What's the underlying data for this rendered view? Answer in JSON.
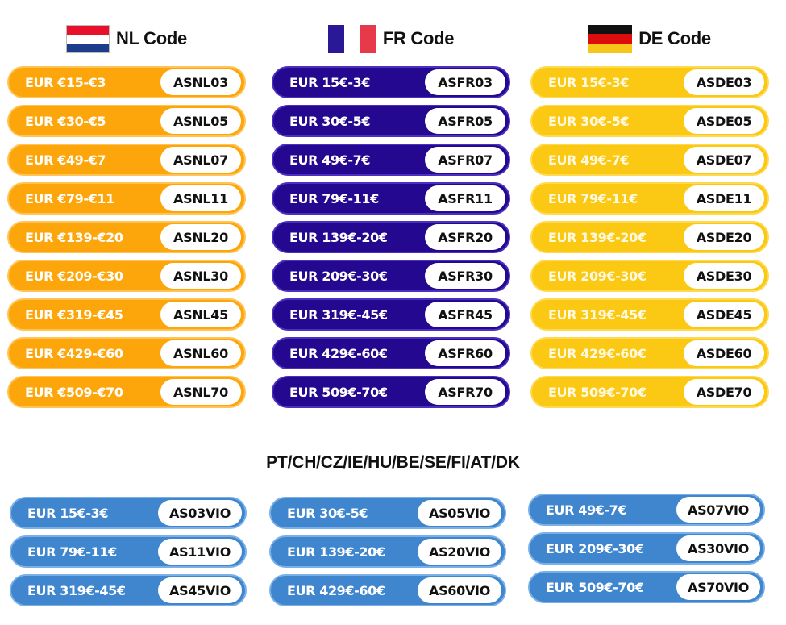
{
  "colors": {
    "nl_pill": "#fda60c",
    "fr_pill": "#24088f",
    "de_pill": "#fbc813",
    "other_pill": "#3f86ce",
    "code_bg": "#ffffff",
    "code_text": "#111111",
    "label_text": "#ffffff"
  },
  "nl": {
    "title": "NL Code",
    "flag_icon": "netherlands-flag-icon",
    "items": [
      {
        "label": "EUR €15-€3",
        "code": "ASNL03"
      },
      {
        "label": "EUR €30-€5",
        "code": "ASNL05"
      },
      {
        "label": "EUR €49-€7",
        "code": "ASNL07"
      },
      {
        "label": "EUR €79-€11",
        "code": "ASNL11"
      },
      {
        "label": "EUR €139-€20",
        "code": "ASNL20"
      },
      {
        "label": "EUR €209-€30",
        "code": "ASNL30"
      },
      {
        "label": "EUR €319-€45",
        "code": "ASNL45"
      },
      {
        "label": "EUR €429-€60",
        "code": "ASNL60"
      },
      {
        "label": "EUR €509-€70",
        "code": "ASNL70"
      }
    ]
  },
  "fr": {
    "title": "FR Code",
    "flag_icon": "france-flag-icon",
    "items": [
      {
        "label": "EUR 15€-3€",
        "code": "ASFR03"
      },
      {
        "label": "EUR 30€-5€",
        "code": "ASFR05"
      },
      {
        "label": "EUR 49€-7€",
        "code": "ASFR07"
      },
      {
        "label": "EUR 79€-11€",
        "code": "ASFR11"
      },
      {
        "label": "EUR 139€-20€",
        "code": "ASFR20"
      },
      {
        "label": "EUR 209€-30€",
        "code": "ASFR30"
      },
      {
        "label": "EUR 319€-45€",
        "code": "ASFR45"
      },
      {
        "label": "EUR 429€-60€",
        "code": "ASFR60"
      },
      {
        "label": "EUR 509€-70€",
        "code": "ASFR70"
      }
    ]
  },
  "de": {
    "title": "DE Code",
    "flag_icon": "germany-flag-icon",
    "items": [
      {
        "label": "EUR 15€-3€",
        "code": "ASDE03"
      },
      {
        "label": "EUR 30€-5€",
        "code": "ASDE05"
      },
      {
        "label": "EUR 49€-7€",
        "code": "ASDE07"
      },
      {
        "label": "EUR 79€-11€",
        "code": "ASDE11"
      },
      {
        "label": "EUR 139€-20€",
        "code": "ASDE20"
      },
      {
        "label": "EUR 209€-30€",
        "code": "ASDE30"
      },
      {
        "label": "EUR 319€-45€",
        "code": "ASDE45"
      },
      {
        "label": "EUR 429€-60€",
        "code": "ASDE60"
      },
      {
        "label": "EUR 509€-70€",
        "code": "ASDE70"
      }
    ]
  },
  "other": {
    "title": "PT/CH/CZ/IE/HU/BE/SE/FI/AT/DK",
    "columns": [
      [
        {
          "label": "EUR 15€-3€",
          "code": "AS03VIO"
        },
        {
          "label": "EUR 79€-11€",
          "code": "AS11VIO"
        },
        {
          "label": "EUR 319€-45€",
          "code": "AS45VIO"
        }
      ],
      [
        {
          "label": "EUR 30€-5€",
          "code": "AS05VIO"
        },
        {
          "label": "EUR 139€-20€",
          "code": "AS20VIO"
        },
        {
          "label": "EUR 429€-60€",
          "code": "AS60VIO"
        }
      ],
      [
        {
          "label": "EUR 49€-7€",
          "code": "AS07VIO"
        },
        {
          "label": "EUR 209€-30€",
          "code": "AS30VIO"
        },
        {
          "label": "EUR 509€-70€",
          "code": "AS70VIO"
        }
      ]
    ]
  }
}
